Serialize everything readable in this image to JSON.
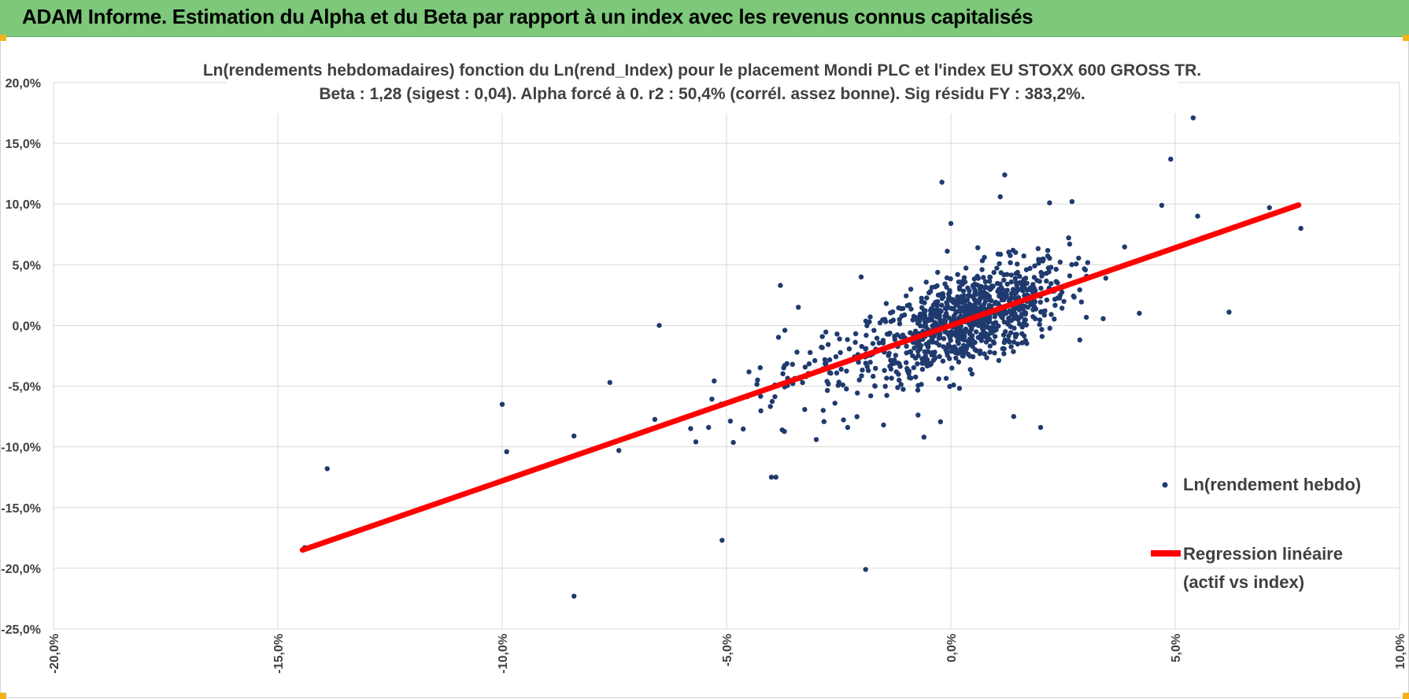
{
  "header": {
    "title": "ADAM Informe. Estimation du Alpha et du Beta par rapport à un index avec les revenus connus capitalisés"
  },
  "colors": {
    "banner": "#7dc87a",
    "points": "#1f3a6e",
    "regression": "#ff0000",
    "grid": "#d9d9d9",
    "text": "#404040"
  },
  "chart_data": {
    "type": "scatter",
    "title_lines": [
      "Ln(rendements hebdomadaires) fonction du Ln(rend_Index) pour le placement Mondi PLC et l'index EU STOXX 600 GROSS TR.",
      "Beta : 1,28 (sigest : 0,04). Alpha forcé à 0. r2 : 50,4% (corrél. assez bonne). Sig résidu FY : 383,2%."
    ],
    "xlim": [
      -0.2,
      0.1
    ],
    "ylim": [
      -0.25,
      0.2
    ],
    "x_ticks": [
      "-20,0%",
      "-15,0%",
      "-10,0%",
      "-5,0%",
      "0,0%",
      "5,0%",
      "10,0%"
    ],
    "y_ticks": [
      "20,0%",
      "15,0%",
      "10,0%",
      "5,0%",
      "0,0%",
      "-5,0%",
      "-10,0%",
      "-15,0%",
      "-20,0%",
      "-25,0%"
    ],
    "grid": true,
    "legend_position": "right",
    "series": [
      {
        "name": "Ln(rendement hebdo)",
        "kind": "scatter",
        "outliers": [
          [
            -0.144,
            -0.183
          ],
          [
            -0.139,
            -0.118
          ],
          [
            -0.1,
            -0.065
          ],
          [
            -0.099,
            -0.104
          ],
          [
            -0.084,
            -0.091
          ],
          [
            -0.084,
            -0.223
          ],
          [
            -0.076,
            -0.047
          ],
          [
            -0.074,
            -0.103
          ],
          [
            -0.065,
            0.0
          ],
          [
            -0.051,
            -0.177
          ],
          [
            -0.038,
            0.033
          ],
          [
            -0.037,
            -0.004
          ],
          [
            -0.04,
            -0.125
          ],
          [
            -0.039,
            -0.125
          ],
          [
            -0.019,
            -0.201
          ],
          [
            -0.002,
            0.118
          ],
          [
            0.0,
            0.084
          ],
          [
            0.011,
            0.106
          ],
          [
            0.012,
            0.124
          ],
          [
            0.047,
            0.099
          ],
          [
            0.049,
            0.137
          ],
          [
            0.054,
            0.171
          ],
          [
            0.055,
            0.09
          ],
          [
            0.071,
            0.097
          ],
          [
            0.078,
            0.08
          ],
          [
            0.062,
            0.011
          ],
          [
            0.022,
            0.101
          ],
          [
            0.027,
            0.102
          ],
          [
            -0.058,
            -0.085
          ],
          [
            -0.054,
            -0.084
          ],
          [
            -0.03,
            -0.094
          ],
          [
            -0.023,
            -0.084
          ],
          [
            -0.015,
            -0.082
          ],
          [
            0.014,
            -0.075
          ],
          [
            0.02,
            -0.084
          ],
          [
            -0.006,
            -0.092
          ],
          [
            -0.034,
            0.015
          ],
          [
            -0.02,
            0.04
          ],
          [
            0.006,
            0.064
          ],
          [
            0.042,
            0.01
          ]
        ]
      },
      {
        "name": "Regression linéaire",
        "name_line2": "(actif vs index)",
        "kind": "line",
        "beta": 1.28,
        "x_range": [
          -0.1445,
          0.0775
        ]
      }
    ]
  }
}
